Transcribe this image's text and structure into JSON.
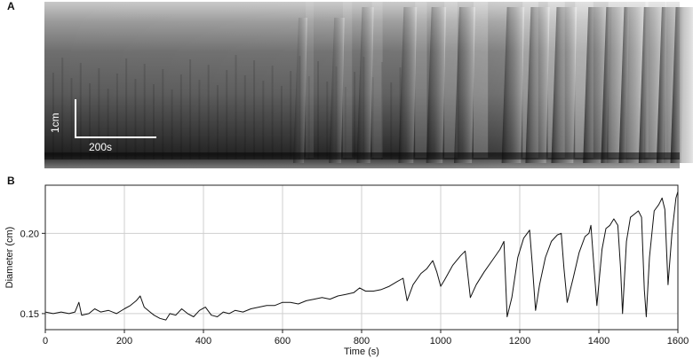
{
  "panels": {
    "a_label": "A",
    "b_label": "B"
  },
  "kymograph": {
    "scale_bar_vertical_label": "1cm",
    "scale_bar_horizontal_label": "200s",
    "contraction_band_times_s": [
      640,
      730,
      800,
      905,
      975,
      1045,
      1165,
      1225,
      1290,
      1370,
      1415,
      1460,
      1510,
      1555,
      1590
    ]
  },
  "chart_data": {
    "type": "line",
    "title": "",
    "xlabel": "Time (s)",
    "ylabel": "Diameter (cm)",
    "xlim": [
      0,
      1600
    ],
    "ylim": [
      0.14,
      0.23
    ],
    "xticks": [
      0,
      200,
      400,
      600,
      800,
      1000,
      1200,
      1400,
      1600
    ],
    "yticks": [
      0.15,
      0.2
    ],
    "ytick_labels": [
      "0.15",
      "0.20"
    ],
    "grid": true,
    "series": [
      {
        "values": [
          [
            0,
            0.151
          ],
          [
            20,
            0.15
          ],
          [
            40,
            0.151
          ],
          [
            60,
            0.15
          ],
          [
            75,
            0.151
          ],
          [
            85,
            0.157
          ],
          [
            92,
            0.149
          ],
          [
            110,
            0.15
          ],
          [
            125,
            0.153
          ],
          [
            140,
            0.151
          ],
          [
            160,
            0.152
          ],
          [
            180,
            0.15
          ],
          [
            200,
            0.153
          ],
          [
            215,
            0.155
          ],
          [
            230,
            0.158
          ],
          [
            240,
            0.161
          ],
          [
            250,
            0.154
          ],
          [
            265,
            0.151
          ],
          [
            275,
            0.149
          ],
          [
            290,
            0.147
          ],
          [
            305,
            0.146
          ],
          [
            315,
            0.15
          ],
          [
            330,
            0.149
          ],
          [
            345,
            0.153
          ],
          [
            360,
            0.15
          ],
          [
            375,
            0.148
          ],
          [
            390,
            0.152
          ],
          [
            405,
            0.154
          ],
          [
            420,
            0.149
          ],
          [
            435,
            0.148
          ],
          [
            450,
            0.151
          ],
          [
            465,
            0.15
          ],
          [
            480,
            0.152
          ],
          [
            500,
            0.151
          ],
          [
            520,
            0.153
          ],
          [
            540,
            0.154
          ],
          [
            560,
            0.155
          ],
          [
            580,
            0.155
          ],
          [
            600,
            0.157
          ],
          [
            620,
            0.157
          ],
          [
            640,
            0.156
          ],
          [
            660,
            0.158
          ],
          [
            680,
            0.159
          ],
          [
            700,
            0.16
          ],
          [
            720,
            0.159
          ],
          [
            740,
            0.161
          ],
          [
            760,
            0.162
          ],
          [
            780,
            0.163
          ],
          [
            795,
            0.166
          ],
          [
            810,
            0.164
          ],
          [
            830,
            0.164
          ],
          [
            850,
            0.165
          ],
          [
            870,
            0.167
          ],
          [
            890,
            0.17
          ],
          [
            905,
            0.172
          ],
          [
            915,
            0.158
          ],
          [
            930,
            0.168
          ],
          [
            950,
            0.175
          ],
          [
            965,
            0.178
          ],
          [
            980,
            0.183
          ],
          [
            990,
            0.176
          ],
          [
            1000,
            0.167
          ],
          [
            1010,
            0.171
          ],
          [
            1030,
            0.18
          ],
          [
            1050,
            0.186
          ],
          [
            1062,
            0.189
          ],
          [
            1075,
            0.16
          ],
          [
            1090,
            0.168
          ],
          [
            1110,
            0.176
          ],
          [
            1130,
            0.183
          ],
          [
            1150,
            0.19
          ],
          [
            1160,
            0.195
          ],
          [
            1168,
            0.148
          ],
          [
            1180,
            0.16
          ],
          [
            1195,
            0.185
          ],
          [
            1210,
            0.197
          ],
          [
            1225,
            0.202
          ],
          [
            1232,
            0.18
          ],
          [
            1240,
            0.152
          ],
          [
            1250,
            0.168
          ],
          [
            1265,
            0.185
          ],
          [
            1280,
            0.195
          ],
          [
            1295,
            0.199
          ],
          [
            1305,
            0.2
          ],
          [
            1312,
            0.178
          ],
          [
            1320,
            0.157
          ],
          [
            1335,
            0.172
          ],
          [
            1350,
            0.188
          ],
          [
            1365,
            0.198
          ],
          [
            1375,
            0.2
          ],
          [
            1380,
            0.205
          ],
          [
            1388,
            0.178
          ],
          [
            1395,
            0.155
          ],
          [
            1408,
            0.19
          ],
          [
            1418,
            0.203
          ],
          [
            1428,
            0.205
          ],
          [
            1438,
            0.209
          ],
          [
            1448,
            0.205
          ],
          [
            1455,
            0.178
          ],
          [
            1460,
            0.15
          ],
          [
            1470,
            0.195
          ],
          [
            1480,
            0.21
          ],
          [
            1490,
            0.212
          ],
          [
            1500,
            0.214
          ],
          [
            1508,
            0.21
          ],
          [
            1515,
            0.165
          ],
          [
            1520,
            0.148
          ],
          [
            1528,
            0.185
          ],
          [
            1540,
            0.214
          ],
          [
            1552,
            0.218
          ],
          [
            1560,
            0.222
          ],
          [
            1567,
            0.215
          ],
          [
            1575,
            0.168
          ],
          [
            1585,
            0.2
          ],
          [
            1595,
            0.222
          ],
          [
            1600,
            0.226
          ]
        ]
      }
    ]
  },
  "colors": {
    "grid": "#cfcfcf",
    "line": "#111111",
    "axis": "#222222",
    "scale_bar": "#ffffff"
  }
}
